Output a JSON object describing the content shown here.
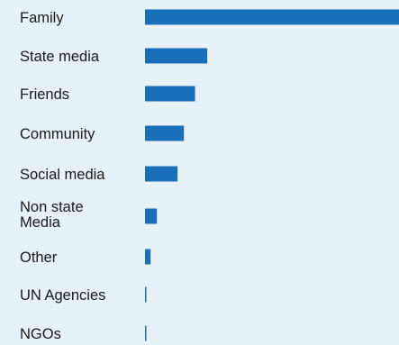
{
  "chart_data": {
    "type": "bar",
    "orientation": "horizontal",
    "categories": [
      "Family",
      "State media",
      "Friends",
      "Community",
      "Social media",
      "Non state Media",
      "Other",
      "UN Agencies",
      "NGOs"
    ],
    "values": [
      100,
      24.5,
      19.7,
      15.3,
      12.8,
      4.7,
      2.2,
      0.4,
      0.4
    ],
    "xlim": [
      0,
      100
    ],
    "bar_color": "#1a6fba",
    "grid": false,
    "legend": "none",
    "title": "",
    "xlabel": "",
    "ylabel": ""
  }
}
